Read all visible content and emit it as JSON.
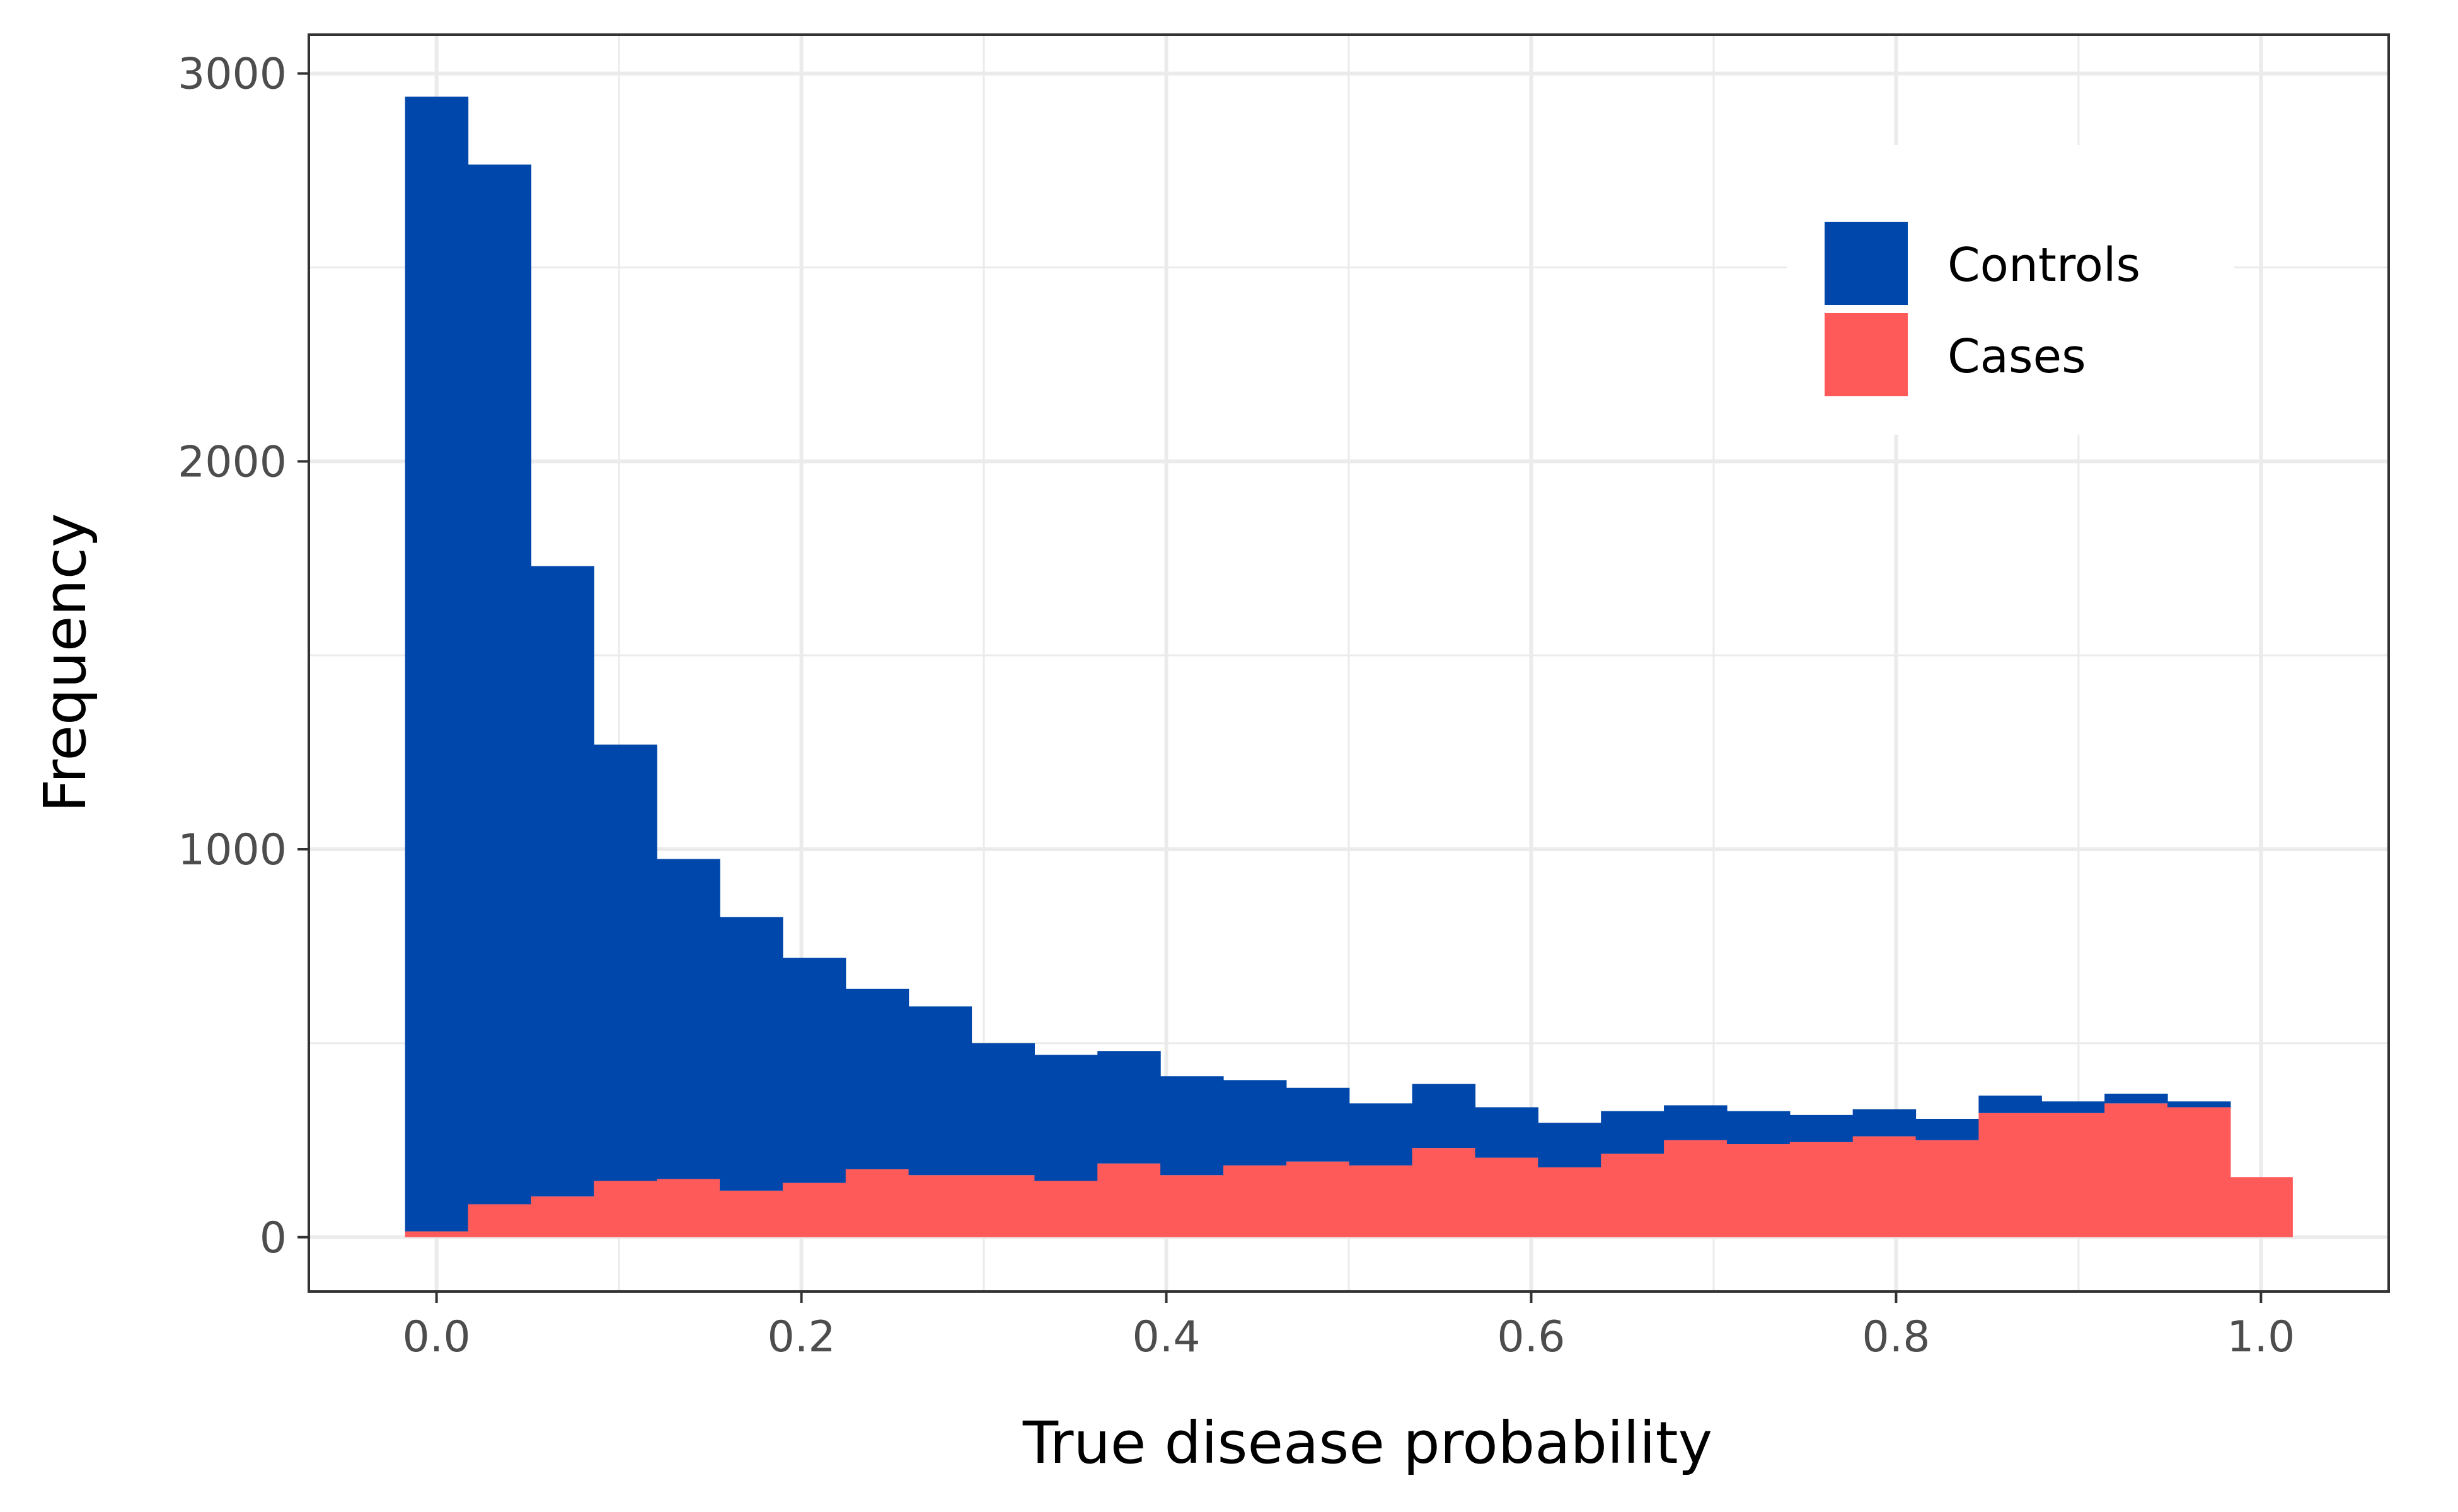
{
  "chart_data": {
    "type": "bar",
    "stacked": true,
    "title": "",
    "xlabel": "True disease probability",
    "ylabel": "Frequency",
    "xlim": [
      -0.07,
      1.07
    ],
    "ylim": [
      -140,
      3100
    ],
    "xticks": [
      0.0,
      0.2,
      0.4,
      0.6,
      0.8,
      1.0
    ],
    "xtick_labels": [
      "0.0",
      "0.2",
      "0.4",
      "0.6",
      "0.8",
      "1.0"
    ],
    "yticks": [
      0,
      1000,
      2000,
      3000
    ],
    "ytick_labels": [
      "0",
      "1000",
      "2000",
      "3000"
    ],
    "grid": true,
    "legend_position": "top-right",
    "bin_width": 0.0345,
    "bin_centers": [
      0.0,
      0.0345,
      0.069,
      0.1035,
      0.138,
      0.1725,
      0.207,
      0.2415,
      0.276,
      0.3105,
      0.345,
      0.3795,
      0.414,
      0.4485,
      0.483,
      0.5175,
      0.552,
      0.5865,
      0.621,
      0.6555,
      0.69,
      0.7245,
      0.759,
      0.7935,
      0.828,
      0.8625,
      0.897,
      0.9315,
      0.966,
      1.0
    ],
    "series": [
      {
        "name": "Controls",
        "color": "#0047ab",
        "values": [
          2925,
          2680,
          1625,
          1125,
          825,
          705,
          580,
          465,
          435,
          340,
          325,
          290,
          255,
          220,
          190,
          160,
          165,
          130,
          115,
          110,
          90,
          85,
          70,
          70,
          55,
          45,
          30,
          25,
          15,
          0
        ]
      },
      {
        "name": "Cases",
        "color": "#ff5a5a",
        "values": [
          15,
          85,
          105,
          145,
          150,
          120,
          140,
          175,
          160,
          160,
          145,
          190,
          160,
          185,
          195,
          185,
          230,
          205,
          180,
          215,
          250,
          240,
          245,
          260,
          250,
          320,
          320,
          345,
          335,
          155
        ]
      }
    ]
  }
}
